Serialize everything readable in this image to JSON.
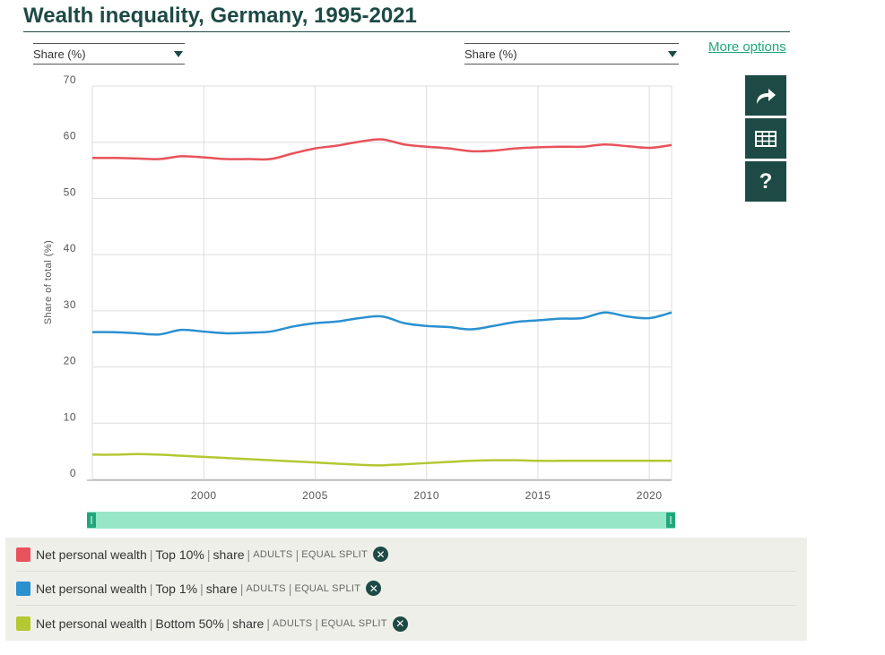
{
  "title": "Wealth inequality, Germany, 1995-2021",
  "controls": {
    "left_select": "Share (%)",
    "right_select": "Share (%)",
    "more_options": "More options",
    "help_label": "?"
  },
  "colors": {
    "brand": "#1d4a45",
    "accent_link": "#21a77c",
    "slider": "#98e6c8",
    "grid": "#dddddd"
  },
  "chart_data": {
    "type": "line",
    "title": "Wealth inequality, Germany, 1995-2021",
    "xlabel": "",
    "ylabel": "Share of total (%)",
    "xlim": [
      1995,
      2021
    ],
    "ylim": [
      0,
      70
    ],
    "x_ticks": [
      2000,
      2005,
      2010,
      2015,
      2020
    ],
    "y_ticks": [
      0,
      10,
      20,
      30,
      40,
      50,
      60,
      70
    ],
    "grid": true,
    "x": [
      1995,
      1996,
      1997,
      1998,
      1999,
      2000,
      2001,
      2002,
      2003,
      2004,
      2005,
      2006,
      2007,
      2008,
      2009,
      2010,
      2011,
      2012,
      2013,
      2014,
      2015,
      2016,
      2017,
      2018,
      2019,
      2020,
      2021
    ],
    "series": [
      {
        "name": "Net personal wealth | Top 10% | share",
        "color": "#e8525a",
        "values": [
          57.2,
          57.2,
          57.1,
          57.0,
          57.5,
          57.3,
          57.0,
          57.0,
          57.0,
          58.0,
          58.9,
          59.4,
          60.1,
          60.5,
          59.6,
          59.2,
          58.9,
          58.4,
          58.5,
          58.9,
          59.1,
          59.2,
          59.2,
          59.6,
          59.3,
          59.0,
          59.5
        ]
      },
      {
        "name": "Net personal wealth | Top 1% | share",
        "color": "#2a90d0",
        "values": [
          26.2,
          26.2,
          26.0,
          25.8,
          26.6,
          26.3,
          26.0,
          26.1,
          26.3,
          27.2,
          27.8,
          28.1,
          28.7,
          29.0,
          27.8,
          27.3,
          27.1,
          26.7,
          27.3,
          28.0,
          28.3,
          28.6,
          28.7,
          29.7,
          29.0,
          28.7,
          29.7
        ]
      },
      {
        "name": "Net personal wealth | Bottom 50% | share",
        "color": "#b3c832",
        "values": [
          4.4,
          4.4,
          4.5,
          4.4,
          4.2,
          4.0,
          3.8,
          3.6,
          3.4,
          3.2,
          3.0,
          2.8,
          2.6,
          2.5,
          2.7,
          2.9,
          3.1,
          3.3,
          3.4,
          3.4,
          3.3,
          3.3,
          3.3,
          3.3,
          3.3,
          3.3,
          3.3
        ]
      }
    ]
  },
  "legend": [
    {
      "color": "#e8525a",
      "variable": "Net personal wealth",
      "group": "Top 10%",
      "measure": "share",
      "pop": "ADULTS",
      "unit": "EQUAL SPLIT"
    },
    {
      "color": "#2a90d0",
      "variable": "Net personal wealth",
      "group": "Top 1%",
      "measure": "share",
      "pop": "ADULTS",
      "unit": "EQUAL SPLIT"
    },
    {
      "color": "#b3c832",
      "variable": "Net personal wealth",
      "group": "Bottom 50%",
      "measure": "share",
      "pop": "ADULTS",
      "unit": "EQUAL SPLIT"
    }
  ]
}
